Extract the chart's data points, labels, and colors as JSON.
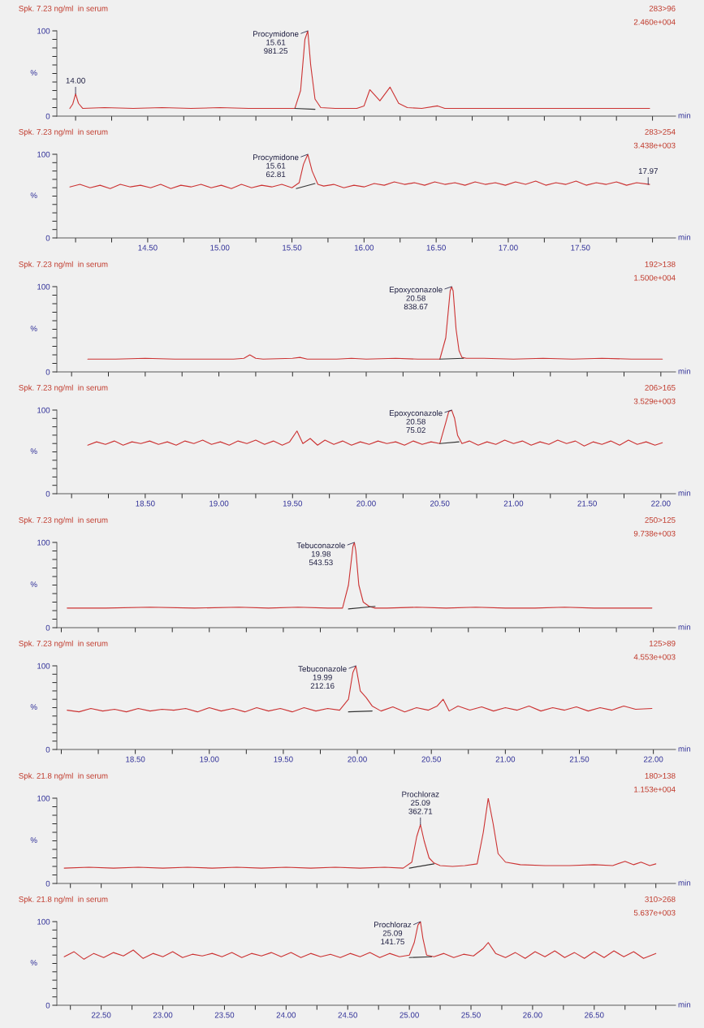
{
  "chart_data": [
    {
      "type": "line",
      "title": "Spk. 7.23 ng/ml  in serum",
      "xlabel": "min",
      "ylabel": "%",
      "xlim": [
        13.87,
        18.16
      ],
      "ylim": [
        0,
        100
      ],
      "tick_labels": "y",
      "xticks": [
        {
          "value": 14,
          "label": null
        },
        {
          "value": 14.25,
          "label": null
        },
        {
          "value": 14.5,
          "label": null
        },
        {
          "value": 14.75,
          "label": null
        },
        {
          "value": 15,
          "label": null
        },
        {
          "value": 15.25,
          "label": null
        },
        {
          "value": 15.5,
          "label": null
        },
        {
          "value": 15.75,
          "label": null
        },
        {
          "value": 16,
          "label": null
        },
        {
          "value": 16.25,
          "label": null
        },
        {
          "value": 16.5,
          "label": null
        },
        {
          "value": 16.75,
          "label": null
        },
        {
          "value": 17,
          "label": null
        },
        {
          "value": 17.25,
          "label": null
        },
        {
          "value": 17.5,
          "label": null
        },
        {
          "value": 17.75,
          "label": null
        },
        {
          "value": 18,
          "label": null
        }
      ],
      "yticks": [
        0,
        {
          "value": 10,
          "label": null
        },
        {
          "value": 20,
          "label": null
        },
        {
          "value": 30,
          "label": null
        },
        {
          "value": 40,
          "label": null
        },
        {
          "value": 50,
          "label": null
        },
        {
          "value": 60,
          "label": null
        },
        {
          "value": 70,
          "label": null
        },
        {
          "value": 80,
          "label": null
        },
        {
          "value": 90,
          "label": null
        },
        100
      ],
      "series": [
        {
          "color": "#cc3333",
          "x": [
            13.96,
            13.98,
            14.0,
            14.02,
            14.05,
            14.2,
            14.4,
            14.6,
            14.8,
            15.0,
            15.2,
            15.4,
            15.52,
            15.56,
            15.59,
            15.61,
            15.63,
            15.66,
            15.7,
            15.8,
            15.95,
            16.0,
            16.04,
            16.11,
            16.18,
            16.24,
            16.3,
            16.4,
            16.51,
            16.56,
            16.7,
            16.9,
            17.1,
            17.3,
            17.5,
            17.7,
            17.98
          ],
          "values": [
            9,
            14,
            26,
            15,
            9,
            10,
            9,
            10,
            9,
            10,
            9,
            9,
            9,
            30,
            90,
            100,
            60,
            20,
            10,
            9,
            9,
            12,
            31,
            18,
            34,
            15,
            10,
            9,
            12,
            9,
            9,
            9,
            9,
            9,
            9,
            9,
            9
          ]
        },
        {
          "color": "#333333",
          "x": [
            15.52,
            15.66
          ],
          "values": [
            9,
            8
          ]
        }
      ],
      "annotations": [
        "283>96",
        "2.460e+004",
        {
          "text": "Procymidone\n15.61\n981.25",
          "x": 15.61,
          "y": 100
        },
        {
          "text": "14.00",
          "x": 14.0,
          "y": 26
        }
      ]
    },
    {
      "type": "line",
      "title": "Spk. 7.23 ng/ml  in serum",
      "xlabel": "min",
      "ylabel": "%",
      "xlim": [
        13.87,
        18.16
      ],
      "ylim": [
        0,
        100
      ],
      "xticks": [
        {
          "value": 14,
          "label": null
        },
        {
          "value": 14.25,
          "label": null
        },
        {
          "value": 14.5,
          "label": "14.50"
        },
        {
          "value": 14.75,
          "label": null
        },
        {
          "value": 15,
          "label": "15.00"
        },
        {
          "value": 15.25,
          "label": null
        },
        {
          "value": 15.5,
          "label": "15.50"
        },
        {
          "value": 15.75,
          "label": null
        },
        {
          "value": 16,
          "label": "16.00"
        },
        {
          "value": 16.25,
          "label": null
        },
        {
          "value": 16.5,
          "label": "16.50"
        },
        {
          "value": 16.75,
          "label": null
        },
        {
          "value": 17,
          "label": "17.00"
        },
        {
          "value": 17.25,
          "label": null
        },
        {
          "value": 17.5,
          "label": "17.50"
        },
        {
          "value": 17.75,
          "label": null
        },
        {
          "value": 18,
          "label": null
        }
      ],
      "yticks": [
        0,
        {
          "value": 10,
          "label": null
        },
        {
          "value": 20,
          "label": null
        },
        {
          "value": 30,
          "label": null
        },
        {
          "value": 40,
          "label": null
        },
        {
          "value": 50,
          "label": null
        },
        {
          "value": 60,
          "label": null
        },
        {
          "value": 70,
          "label": null
        },
        {
          "value": 80,
          "label": null
        },
        {
          "value": 90,
          "label": null
        },
        100
      ],
      "series": [
        {
          "color": "#cc3333",
          "x": [
            13.96,
            14.03,
            14.1,
            14.17,
            14.24,
            14.31,
            14.38,
            14.45,
            14.52,
            14.59,
            14.66,
            14.73,
            14.8,
            14.87,
            14.94,
            15.01,
            15.08,
            15.15,
            15.22,
            15.29,
            15.36,
            15.43,
            15.5,
            15.55,
            15.58,
            15.61,
            15.64,
            15.68,
            15.72,
            15.79,
            15.86,
            15.93,
            16.0,
            16.07,
            16.14,
            16.21,
            16.28,
            16.35,
            16.42,
            16.49,
            16.56,
            16.63,
            16.7,
            16.77,
            16.84,
            16.91,
            16.98,
            17.05,
            17.12,
            17.19,
            17.26,
            17.33,
            17.4,
            17.47,
            17.54,
            17.61,
            17.68,
            17.75,
            17.82,
            17.89,
            17.98
          ],
          "values": [
            61,
            64,
            60,
            63,
            59,
            64,
            61,
            63,
            60,
            64,
            59,
            63,
            61,
            64,
            60,
            63,
            59,
            64,
            60,
            63,
            61,
            64,
            60,
            66,
            88,
            100,
            80,
            64,
            62,
            64,
            60,
            63,
            61,
            65,
            63,
            67,
            64,
            66,
            63,
            67,
            64,
            66,
            63,
            67,
            64,
            66,
            63,
            67,
            64,
            68,
            63,
            66,
            64,
            68,
            63,
            66,
            64,
            67,
            63,
            66,
            64
          ]
        },
        {
          "color": "#333333",
          "x": [
            15.53,
            15.66
          ],
          "values": [
            59,
            65
          ]
        }
      ],
      "annotations": [
        "283>254",
        "3.438e+003",
        {
          "text": "Procymidone\n15.61\n62.81",
          "x": 15.61,
          "y": 100
        },
        {
          "text": "17.97",
          "x": 17.97,
          "y": 64
        }
      ]
    },
    {
      "type": "line",
      "title": "Spk. 7.23 ng/ml  in serum",
      "xlabel": "min",
      "ylabel": "%",
      "xlim": [
        17.9,
        22.1
      ],
      "ylim": [
        0,
        100
      ],
      "tick_labels": "y",
      "xticks": [
        {
          "value": 18,
          "label": null
        },
        {
          "value": 18.25,
          "label": null
        },
        {
          "value": 18.5,
          "label": null
        },
        {
          "value": 18.75,
          "label": null
        },
        {
          "value": 19,
          "label": null
        },
        {
          "value": 19.25,
          "label": null
        },
        {
          "value": 19.5,
          "label": null
        },
        {
          "value": 19.75,
          "label": null
        },
        {
          "value": 20,
          "label": null
        },
        {
          "value": 20.25,
          "label": null
        },
        {
          "value": 20.5,
          "label": null
        },
        {
          "value": 20.75,
          "label": null
        },
        {
          "value": 21,
          "label": null
        },
        {
          "value": 21.25,
          "label": null
        },
        {
          "value": 21.5,
          "label": null
        },
        {
          "value": 21.75,
          "label": null
        },
        {
          "value": 22,
          "label": null
        }
      ],
      "yticks": [
        0,
        {
          "value": 10,
          "label": null
        },
        {
          "value": 20,
          "label": null
        },
        {
          "value": 30,
          "label": null
        },
        {
          "value": 40,
          "label": null
        },
        {
          "value": 50,
          "label": null
        },
        {
          "value": 60,
          "label": null
        },
        {
          "value": 70,
          "label": null
        },
        {
          "value": 80,
          "label": null
        },
        {
          "value": 90,
          "label": null
        },
        100
      ],
      "series": [
        {
          "color": "#cc3333",
          "x": [
            18.11,
            18.3,
            18.5,
            18.7,
            18.9,
            19.1,
            19.17,
            19.21,
            19.25,
            19.3,
            19.5,
            19.55,
            19.6,
            19.8,
            19.9,
            20.0,
            20.2,
            20.35,
            20.45,
            20.5,
            20.54,
            20.57,
            20.58,
            20.59,
            20.61,
            20.63,
            20.65,
            20.68,
            20.8,
            21.0,
            21.2,
            21.4,
            21.6,
            21.8,
            22.01
          ],
          "values": [
            15,
            15,
            16,
            15,
            15,
            15,
            16,
            20,
            16,
            15,
            16,
            17,
            15,
            15,
            16,
            15,
            16,
            15,
            15,
            15,
            40,
            95,
            100,
            95,
            50,
            25,
            17,
            16,
            16,
            15,
            16,
            15,
            16,
            15,
            15
          ]
        },
        {
          "color": "#333333",
          "x": [
            20.5,
            20.66
          ],
          "values": [
            15,
            16
          ]
        }
      ],
      "annotations": [
        "192>138",
        "1.500e+004",
        {
          "text": "Epoxyconazole\n20.58\n838.67",
          "x": 20.58,
          "y": 100
        }
      ]
    },
    {
      "type": "line",
      "title": "Spk. 7.23 ng/ml  in serum",
      "xlabel": "min",
      "ylabel": "%",
      "xlim": [
        17.9,
        22.1
      ],
      "ylim": [
        0,
        100
      ],
      "xticks": [
        {
          "value": 18,
          "label": null
        },
        {
          "value": 18.25,
          "label": null
        },
        {
          "value": 18.5,
          "label": "18.50"
        },
        {
          "value": 18.75,
          "label": null
        },
        {
          "value": 19,
          "label": "19.00"
        },
        {
          "value": 19.25,
          "label": null
        },
        {
          "value": 19.5,
          "label": "19.50"
        },
        {
          "value": 19.75,
          "label": null
        },
        {
          "value": 20,
          "label": "20.00"
        },
        {
          "value": 20.25,
          "label": null
        },
        {
          "value": 20.5,
          "label": "20.50"
        },
        {
          "value": 20.75,
          "label": null
        },
        {
          "value": 21,
          "label": "21.00"
        },
        {
          "value": 21.25,
          "label": null
        },
        {
          "value": 21.5,
          "label": "21.50"
        },
        {
          "value": 21.75,
          "label": null
        },
        {
          "value": 22,
          "label": "22.00"
        }
      ],
      "yticks": [
        0,
        {
          "value": 10,
          "label": null
        },
        {
          "value": 20,
          "label": null
        },
        {
          "value": 30,
          "label": null
        },
        {
          "value": 40,
          "label": null
        },
        {
          "value": 50,
          "label": null
        },
        {
          "value": 60,
          "label": null
        },
        {
          "value": 70,
          "label": null
        },
        {
          "value": 80,
          "label": null
        },
        {
          "value": 90,
          "label": null
        },
        100
      ],
      "series": [
        {
          "color": "#cc3333",
          "x": [
            18.11,
            18.17,
            18.23,
            18.29,
            18.35,
            18.41,
            18.47,
            18.53,
            18.59,
            18.65,
            18.71,
            18.77,
            18.83,
            18.89,
            18.95,
            19.01,
            19.07,
            19.13,
            19.19,
            19.25,
            19.31,
            19.37,
            19.43,
            19.48,
            19.53,
            19.57,
            19.62,
            19.67,
            19.72,
            19.78,
            19.84,
            19.9,
            19.96,
            20.02,
            20.08,
            20.14,
            20.2,
            20.26,
            20.32,
            20.38,
            20.44,
            20.5,
            20.54,
            20.56,
            20.58,
            20.6,
            20.62,
            20.65,
            20.7,
            20.76,
            20.82,
            20.88,
            20.94,
            21.0,
            21.06,
            21.12,
            21.18,
            21.24,
            21.3,
            21.36,
            21.42,
            21.48,
            21.54,
            21.6,
            21.66,
            21.72,
            21.78,
            21.84,
            21.9,
            21.96,
            22.01
          ],
          "values": [
            58,
            62,
            59,
            63,
            58,
            62,
            60,
            63,
            59,
            62,
            58,
            63,
            60,
            64,
            59,
            62,
            58,
            63,
            60,
            64,
            59,
            63,
            58,
            62,
            75,
            60,
            66,
            58,
            64,
            59,
            63,
            58,
            62,
            59,
            63,
            60,
            62,
            58,
            63,
            59,
            62,
            60,
            85,
            98,
            100,
            90,
            70,
            60,
            63,
            58,
            62,
            59,
            64,
            60,
            63,
            58,
            62,
            59,
            64,
            60,
            63,
            57,
            62,
            59,
            63,
            58,
            64,
            59,
            62,
            58,
            61
          ]
        },
        {
          "color": "#333333",
          "x": [
            20.5,
            20.63
          ],
          "values": [
            60,
            62
          ]
        }
      ],
      "annotations": [
        "206>165",
        "3.529e+003",
        {
          "text": "Epoxyconazole\n20.58\n75.02",
          "x": 20.58,
          "y": 100
        }
      ]
    },
    {
      "type": "line",
      "title": "Spk. 7.23 ng/ml  in serum",
      "xlabel": "min",
      "ylabel": "%",
      "xlim": [
        17.97,
        22.15
      ],
      "ylim": [
        0,
        100
      ],
      "tick_labels": "y",
      "xticks": [
        {
          "value": 18,
          "label": null
        },
        {
          "value": 18.25,
          "label": null
        },
        {
          "value": 18.5,
          "label": null
        },
        {
          "value": 18.75,
          "label": null
        },
        {
          "value": 19,
          "label": null
        },
        {
          "value": 19.25,
          "label": null
        },
        {
          "value": 19.5,
          "label": null
        },
        {
          "value": 19.75,
          "label": null
        },
        {
          "value": 20,
          "label": null
        },
        {
          "value": 20.25,
          "label": null
        },
        {
          "value": 20.5,
          "label": null
        },
        {
          "value": 20.75,
          "label": null
        },
        {
          "value": 21,
          "label": null
        },
        {
          "value": 21.25,
          "label": null
        },
        {
          "value": 21.5,
          "label": null
        },
        {
          "value": 21.75,
          "label": null
        },
        {
          "value": 22,
          "label": null
        }
      ],
      "yticks": [
        0,
        {
          "value": 10,
          "label": null
        },
        {
          "value": 20,
          "label": null
        },
        {
          "value": 30,
          "label": null
        },
        {
          "value": 40,
          "label": null
        },
        {
          "value": 50,
          "label": null
        },
        {
          "value": 60,
          "label": null
        },
        {
          "value": 70,
          "label": null
        },
        {
          "value": 80,
          "label": null
        },
        {
          "value": 90,
          "label": null
        },
        100
      ],
      "series": [
        {
          "color": "#cc3333",
          "x": [
            18.04,
            18.3,
            18.6,
            18.9,
            19.2,
            19.4,
            19.6,
            19.8,
            19.9,
            19.94,
            19.97,
            19.98,
            19.99,
            20.01,
            20.04,
            20.08,
            20.12,
            20.2,
            20.4,
            20.6,
            20.8,
            21.0,
            21.2,
            21.4,
            21.6,
            21.8,
            21.99
          ],
          "values": [
            23,
            23,
            24,
            23,
            24,
            23,
            24,
            23,
            23,
            50,
            95,
            100,
            90,
            50,
            30,
            25,
            23,
            23,
            24,
            23,
            24,
            23,
            23,
            24,
            23,
            23,
            23
          ]
        },
        {
          "color": "#333333",
          "x": [
            19.94,
            20.12
          ],
          "values": [
            22,
            25
          ]
        }
      ],
      "annotations": [
        "250>125",
        "9.738e+003",
        {
          "text": "Tebuconazole\n19.98\n543.53",
          "x": 19.98,
          "y": 100
        }
      ]
    },
    {
      "type": "line",
      "title": "Spk. 7.23 ng/ml  in serum",
      "xlabel": "min",
      "ylabel": "%",
      "xlim": [
        17.97,
        22.15
      ],
      "ylim": [
        0,
        100
      ],
      "xticks": [
        {
          "value": 18,
          "label": null
        },
        {
          "value": 18.25,
          "label": null
        },
        {
          "value": 18.5,
          "label": "18.50"
        },
        {
          "value": 18.75,
          "label": null
        },
        {
          "value": 19,
          "label": "19.00"
        },
        {
          "value": 19.25,
          "label": null
        },
        {
          "value": 19.5,
          "label": "19.50"
        },
        {
          "value": 19.75,
          "label": null
        },
        {
          "value": 20,
          "label": "20.00"
        },
        {
          "value": 20.25,
          "label": null
        },
        {
          "value": 20.5,
          "label": "20.50"
        },
        {
          "value": 20.75,
          "label": null
        },
        {
          "value": 21,
          "label": "21.00"
        },
        {
          "value": 21.25,
          "label": null
        },
        {
          "value": 21.5,
          "label": "21.50"
        },
        {
          "value": 21.75,
          "label": null
        },
        {
          "value": 22,
          "label": "22.00"
        }
      ],
      "yticks": [
        0,
        {
          "value": 10,
          "label": null
        },
        {
          "value": 20,
          "label": null
        },
        {
          "value": 30,
          "label": null
        },
        {
          "value": 40,
          "label": null
        },
        {
          "value": 50,
          "label": null
        },
        {
          "value": 60,
          "label": null
        },
        {
          "value": 70,
          "label": null
        },
        {
          "value": 80,
          "label": null
        },
        {
          "value": 90,
          "label": null
        },
        100
      ],
      "series": [
        {
          "color": "#cc3333",
          "x": [
            18.04,
            18.12,
            18.2,
            18.28,
            18.36,
            18.44,
            18.52,
            18.6,
            18.68,
            18.76,
            18.84,
            18.92,
            19.0,
            19.08,
            19.16,
            19.24,
            19.32,
            19.4,
            19.48,
            19.56,
            19.64,
            19.72,
            19.8,
            19.88,
            19.94,
            19.97,
            19.99,
            20.02,
            20.06,
            20.1,
            20.16,
            20.24,
            20.32,
            20.4,
            20.48,
            20.54,
            20.58,
            20.62,
            20.68,
            20.76,
            20.84,
            20.92,
            21.0,
            21.08,
            21.16,
            21.24,
            21.32,
            21.4,
            21.48,
            21.56,
            21.64,
            21.72,
            21.8,
            21.88,
            21.99
          ],
          "values": [
            47,
            45,
            49,
            46,
            48,
            45,
            49,
            46,
            48,
            47,
            49,
            45,
            50,
            46,
            49,
            45,
            50,
            46,
            49,
            45,
            50,
            46,
            49,
            47,
            60,
            92,
            100,
            70,
            62,
            52,
            46,
            51,
            45,
            50,
            47,
            52,
            60,
            46,
            52,
            47,
            51,
            46,
            50,
            47,
            52,
            46,
            50,
            47,
            51,
            46,
            50,
            47,
            52,
            48,
            49
          ]
        },
        {
          "color": "#333333",
          "x": [
            19.94,
            20.1
          ],
          "values": [
            45,
            46
          ]
        }
      ],
      "annotations": [
        "125>89",
        "4.553e+003",
        {
          "text": "Tebuconazole\n19.99\n212.16",
          "x": 19.99,
          "y": 100
        }
      ]
    },
    {
      "type": "line",
      "title": "Spk. 21.8 ng/ml  in serum",
      "xlabel": "min",
      "ylabel": "%",
      "xlim": [
        22.14,
        27.16
      ],
      "ylim": [
        0,
        100
      ],
      "tick_labels": "y",
      "xticks": [
        {
          "value": 22.25,
          "label": null
        },
        {
          "value": 22.5,
          "label": null
        },
        {
          "value": 22.75,
          "label": null
        },
        {
          "value": 23,
          "label": null
        },
        {
          "value": 23.25,
          "label": null
        },
        {
          "value": 23.5,
          "label": null
        },
        {
          "value": 23.75,
          "label": null
        },
        {
          "value": 24,
          "label": null
        },
        {
          "value": 24.25,
          "label": null
        },
        {
          "value": 24.5,
          "label": null
        },
        {
          "value": 24.75,
          "label": null
        },
        {
          "value": 25,
          "label": null
        },
        {
          "value": 25.25,
          "label": null
        },
        {
          "value": 25.5,
          "label": null
        },
        {
          "value": 25.75,
          "label": null
        },
        {
          "value": 26,
          "label": null
        },
        {
          "value": 26.25,
          "label": null
        },
        {
          "value": 26.5,
          "label": null
        },
        {
          "value": 26.75,
          "label": null
        },
        {
          "value": 27,
          "label": null
        }
      ],
      "yticks": [
        0,
        {
          "value": 10,
          "label": null
        },
        {
          "value": 20,
          "label": null
        },
        {
          "value": 30,
          "label": null
        },
        {
          "value": 40,
          "label": null
        },
        {
          "value": 50,
          "label": null
        },
        {
          "value": 60,
          "label": null
        },
        {
          "value": 70,
          "label": null
        },
        {
          "value": 80,
          "label": null
        },
        {
          "value": 90,
          "label": null
        },
        100
      ],
      "series": [
        {
          "color": "#cc3333",
          "x": [
            22.2,
            22.4,
            22.6,
            22.8,
            23.0,
            23.2,
            23.4,
            23.6,
            23.8,
            24.0,
            24.2,
            24.4,
            24.6,
            24.8,
            24.95,
            25.02,
            25.06,
            25.09,
            25.12,
            25.16,
            25.2,
            25.25,
            25.35,
            25.45,
            25.55,
            25.6,
            25.64,
            25.68,
            25.72,
            25.78,
            25.9,
            26.1,
            26.3,
            26.5,
            26.65,
            26.75,
            26.82,
            26.88,
            26.95,
            27.0
          ],
          "values": [
            18,
            19,
            18,
            19,
            18,
            19,
            18,
            19,
            18,
            19,
            18,
            19,
            18,
            19,
            18,
            25,
            55,
            69,
            50,
            30,
            24,
            21,
            20,
            21,
            23,
            60,
            100,
            70,
            35,
            25,
            22,
            21,
            21,
            22,
            21,
            26,
            22,
            25,
            21,
            23
          ]
        },
        {
          "color": "#333333",
          "x": [
            25.0,
            25.2
          ],
          "values": [
            18,
            23
          ]
        }
      ],
      "annotations": [
        "180>138",
        "1.153e+004",
        {
          "text": "Prochloraz\n25.09\n362.71",
          "x": 25.09,
          "y": 69
        }
      ]
    },
    {
      "type": "line",
      "title": "Spk. 21.8 ng/ml  in serum",
      "xlabel": "min",
      "ylabel": "%",
      "xlim": [
        22.14,
        27.16
      ],
      "ylim": [
        0,
        100
      ],
      "xticks": [
        {
          "value": 22.25,
          "label": null
        },
        {
          "value": 22.5,
          "label": "22.50"
        },
        {
          "value": 22.75,
          "label": null
        },
        {
          "value": 23,
          "label": "23.00"
        },
        {
          "value": 23.25,
          "label": null
        },
        {
          "value": 23.5,
          "label": "23.50"
        },
        {
          "value": 23.75,
          "label": null
        },
        {
          "value": 24,
          "label": "24.00"
        },
        {
          "value": 24.25,
          "label": null
        },
        {
          "value": 24.5,
          "label": "24.50"
        },
        {
          "value": 24.75,
          "label": null
        },
        {
          "value": 25,
          "label": "25.00"
        },
        {
          "value": 25.25,
          "label": null
        },
        {
          "value": 25.5,
          "label": "25.50"
        },
        {
          "value": 25.75,
          "label": null
        },
        {
          "value": 26,
          "label": "26.00"
        },
        {
          "value": 26.25,
          "label": null
        },
        {
          "value": 26.5,
          "label": "26.50"
        },
        {
          "value": 26.75,
          "label": null
        },
        {
          "value": 27,
          "label": null
        }
      ],
      "yticks": [
        0,
        {
          "value": 10,
          "label": null
        },
        {
          "value": 20,
          "label": null
        },
        {
          "value": 30,
          "label": null
        },
        {
          "value": 40,
          "label": null
        },
        {
          "value": 50,
          "label": null
        },
        {
          "value": 60,
          "label": null
        },
        {
          "value": 70,
          "label": null
        },
        {
          "value": 80,
          "label": null
        },
        {
          "value": 90,
          "label": null
        },
        100
      ],
      "series": [
        {
          "color": "#cc3333",
          "x": [
            22.2,
            22.28,
            22.36,
            22.44,
            22.52,
            22.6,
            22.68,
            22.76,
            22.84,
            22.92,
            23.0,
            23.08,
            23.16,
            23.24,
            23.32,
            23.4,
            23.48,
            23.56,
            23.64,
            23.72,
            23.8,
            23.88,
            23.96,
            24.04,
            24.12,
            24.2,
            24.28,
            24.36,
            24.44,
            24.52,
            24.6,
            24.68,
            24.76,
            24.84,
            24.92,
            25.0,
            25.04,
            25.07,
            25.09,
            25.11,
            25.14,
            25.2,
            25.28,
            25.36,
            25.44,
            25.52,
            25.6,
            25.64,
            25.7,
            25.78,
            25.86,
            25.94,
            26.02,
            26.1,
            26.18,
            26.26,
            26.34,
            26.42,
            26.5,
            26.58,
            26.66,
            26.74,
            26.82,
            26.9,
            27.0
          ],
          "values": [
            58,
            64,
            55,
            62,
            57,
            63,
            59,
            66,
            56,
            62,
            58,
            64,
            57,
            61,
            59,
            62,
            58,
            63,
            57,
            62,
            59,
            63,
            58,
            63,
            57,
            62,
            58,
            61,
            57,
            62,
            58,
            63,
            57,
            62,
            58,
            60,
            75,
            96,
            100,
            80,
            60,
            58,
            62,
            57,
            61,
            59,
            68,
            75,
            62,
            57,
            63,
            56,
            64,
            58,
            65,
            57,
            63,
            56,
            64,
            57,
            65,
            58,
            64,
            56,
            62
          ]
        },
        {
          "color": "#333333",
          "x": [
            25.0,
            25.18
          ],
          "values": [
            57,
            58
          ]
        }
      ],
      "annotations": [
        "310>268",
        "5.637e+003",
        {
          "text": "Prochloraz\n25.09\n141.75",
          "x": 25.09,
          "y": 100
        }
      ]
    }
  ]
}
